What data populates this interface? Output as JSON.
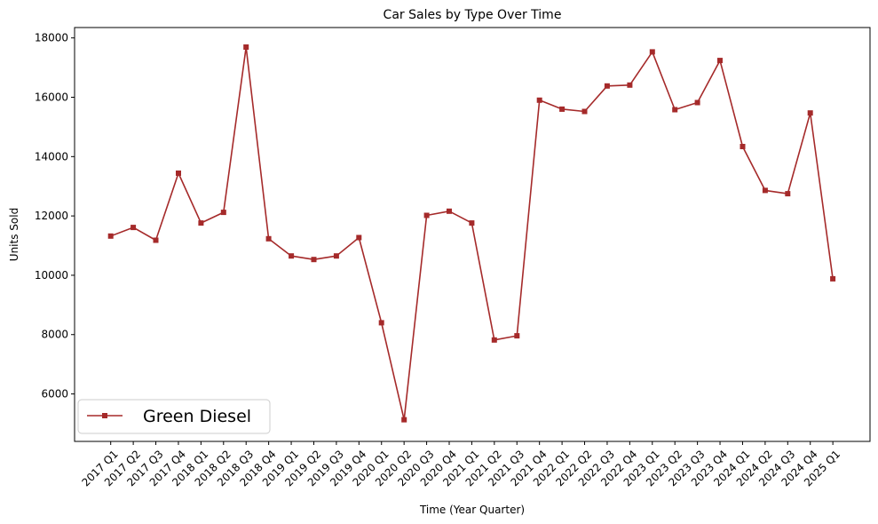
{
  "chart_data": {
    "type": "line",
    "title": "Car Sales by Type Over Time",
    "xlabel": "Time (Year Quarter)",
    "ylabel": "Units Sold",
    "ylim": [
      4400,
      18350
    ],
    "yticks": [
      6000,
      8000,
      10000,
      12000,
      14000,
      16000,
      18000
    ],
    "grid": false,
    "legend_position": "lower-left",
    "categories": [
      "2017 Q1",
      "2017 Q2",
      "2017 Q3",
      "2017 Q4",
      "2018 Q1",
      "2018 Q2",
      "2018 Q3",
      "2018 Q4",
      "2019 Q1",
      "2019 Q2",
      "2019 Q3",
      "2019 Q4",
      "2020 Q1",
      "2020 Q2",
      "2020 Q3",
      "2020 Q4",
      "2021 Q1",
      "2021 Q2",
      "2021 Q3",
      "2021 Q4",
      "2022 Q1",
      "2022 Q2",
      "2022 Q3",
      "2022 Q4",
      "2023 Q1",
      "2023 Q2",
      "2023 Q3",
      "2023 Q4",
      "2024 Q1",
      "2024 Q2",
      "2024 Q3",
      "2024 Q4",
      "2025 Q1"
    ],
    "series": [
      {
        "name": "Green Diesel",
        "color": "#a52a2a",
        "marker": "square",
        "values": [
          11320,
          11610,
          11180,
          13440,
          11760,
          12120,
          17690,
          11230,
          10650,
          10530,
          10650,
          11270,
          8400,
          5130,
          12020,
          12160,
          11760,
          7820,
          7960,
          15900,
          15600,
          15520,
          16380,
          16410,
          17530,
          15580,
          15820,
          17240,
          14340,
          12860,
          12750,
          15470,
          9880
        ]
      }
    ]
  }
}
